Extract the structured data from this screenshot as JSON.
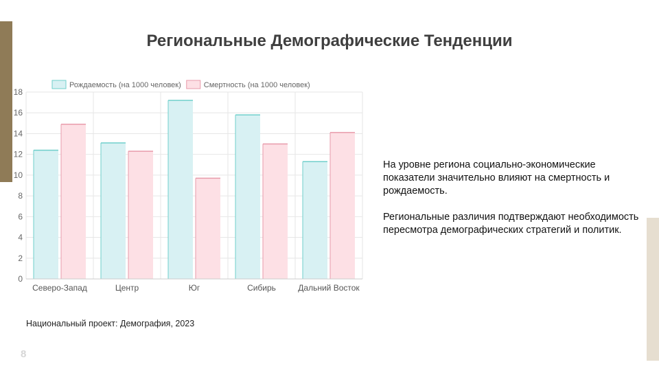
{
  "title": "Региональные Демографические Тенденции",
  "chart_data": {
    "type": "bar",
    "categories": [
      "Северо-Запад",
      "Центр",
      "Юг",
      "Сибирь",
      "Дальний Восток"
    ],
    "series": [
      {
        "name": "Рождаемость (на 1000 человек)",
        "values": [
          12.4,
          13.1,
          17.2,
          15.8,
          11.3
        ],
        "fill": "#d8f1f3",
        "stroke": "#6fcfcb"
      },
      {
        "name": "Смертность (на 1000 человек)",
        "values": [
          14.9,
          12.3,
          9.7,
          13.0,
          14.1
        ],
        "fill": "#fde0e5",
        "stroke": "#e89aaa"
      }
    ],
    "ylim": [
      0,
      18
    ],
    "yticks": [
      0,
      2,
      4,
      6,
      8,
      10,
      12,
      14,
      16,
      18
    ],
    "grid": true,
    "legend": "top",
    "title": "",
    "xlabel": "",
    "ylabel": ""
  },
  "note": {
    "paragraph1": "На уровне региона социально-экономические показатели значительно влияют на смертность и рождаемость.",
    "paragraph2": "Региональные различия подтверждают необходимость пересмотра демографических стратегий и политик."
  },
  "source": "Национальный проект: Демография, 2023",
  "page_number": "8"
}
